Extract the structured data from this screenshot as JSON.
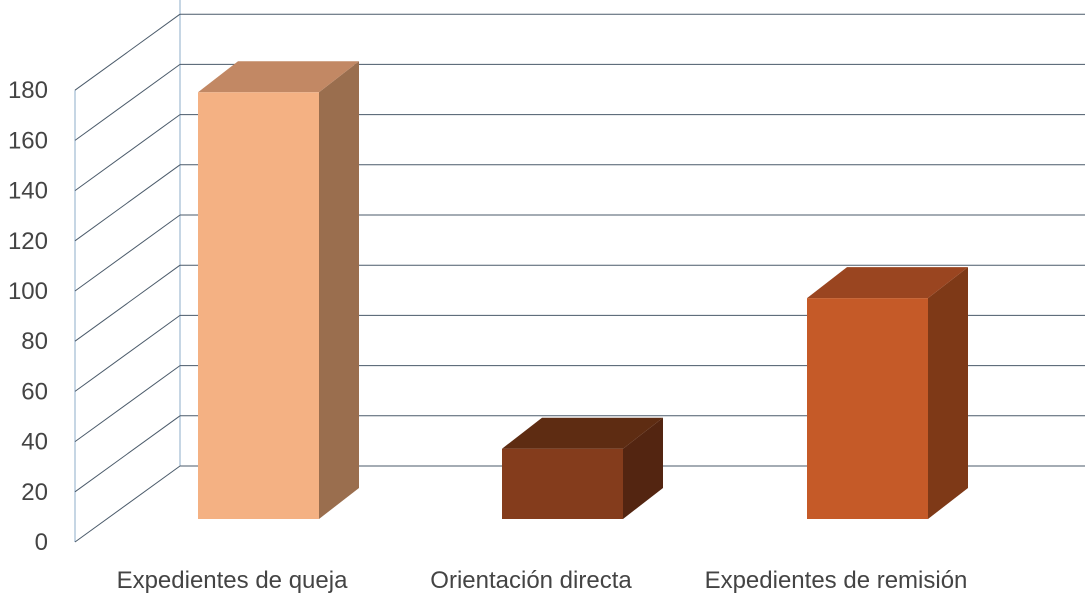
{
  "chart_data": {
    "type": "bar",
    "style": "3d-column",
    "categories": [
      "Expedientes de queja",
      "Orientación directa",
      "Expedientes de remisión"
    ],
    "values": [
      170,
      28,
      88
    ],
    "ylim": [
      0,
      180
    ],
    "yticks": [
      0,
      20,
      40,
      60,
      80,
      100,
      120,
      140,
      160,
      180
    ],
    "title": "",
    "xlabel": "",
    "ylabel": "",
    "grid": true,
    "legend": "none",
    "colors": {
      "bars": [
        {
          "front": "#F4B183",
          "side": "#9A6E4E",
          "top": "#C28864"
        },
        {
          "front": "#843C1C",
          "side": "#532511",
          "top": "#5E2C12"
        },
        {
          "front": "#C55A28",
          "side": "#7E3917",
          "top": "#9A4520"
        }
      ],
      "grid": "#4a5a6a",
      "wall": "#b4c8dc"
    }
  }
}
